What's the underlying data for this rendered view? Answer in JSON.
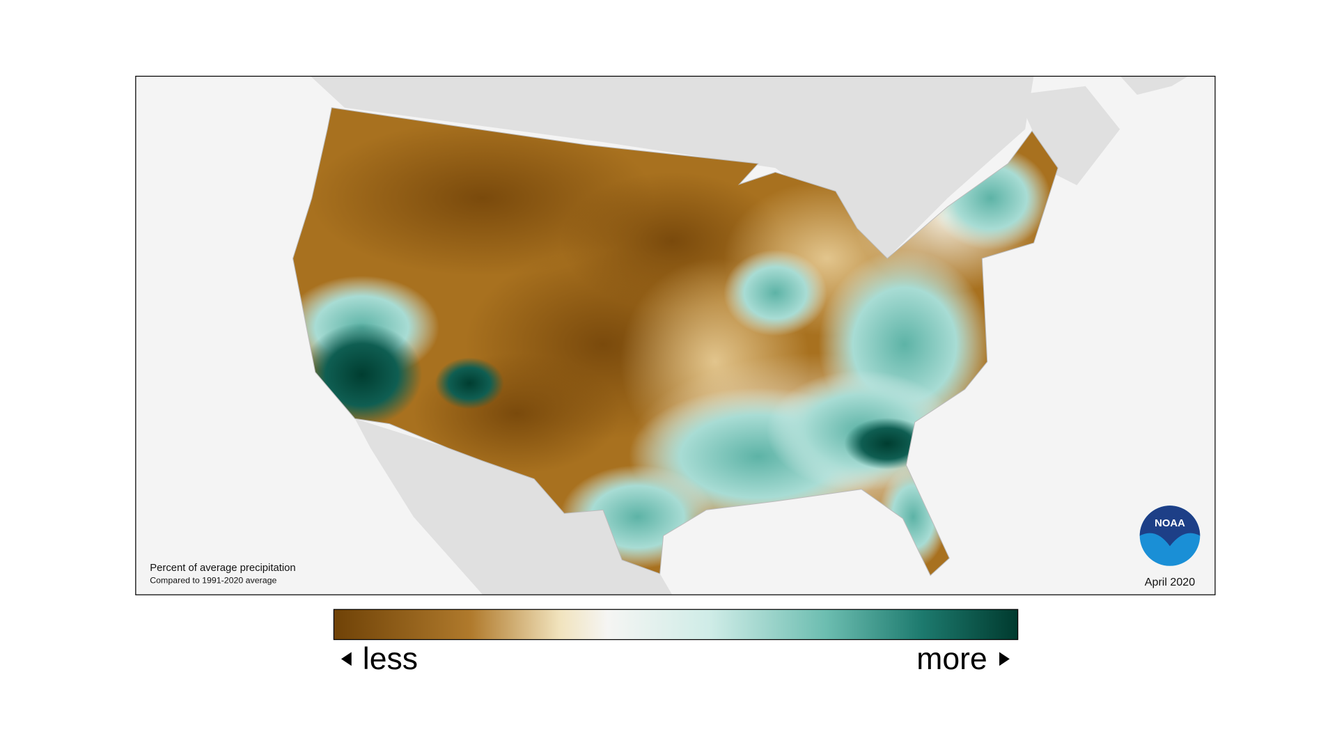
{
  "map": {
    "note_title": "Percent of average precipitation",
    "note_subtitle": "Compared to 1991-2020 average",
    "period": "April 2020",
    "logo_text": "NOAA"
  },
  "legend": {
    "low_label": "less",
    "high_label": "more"
  }
}
